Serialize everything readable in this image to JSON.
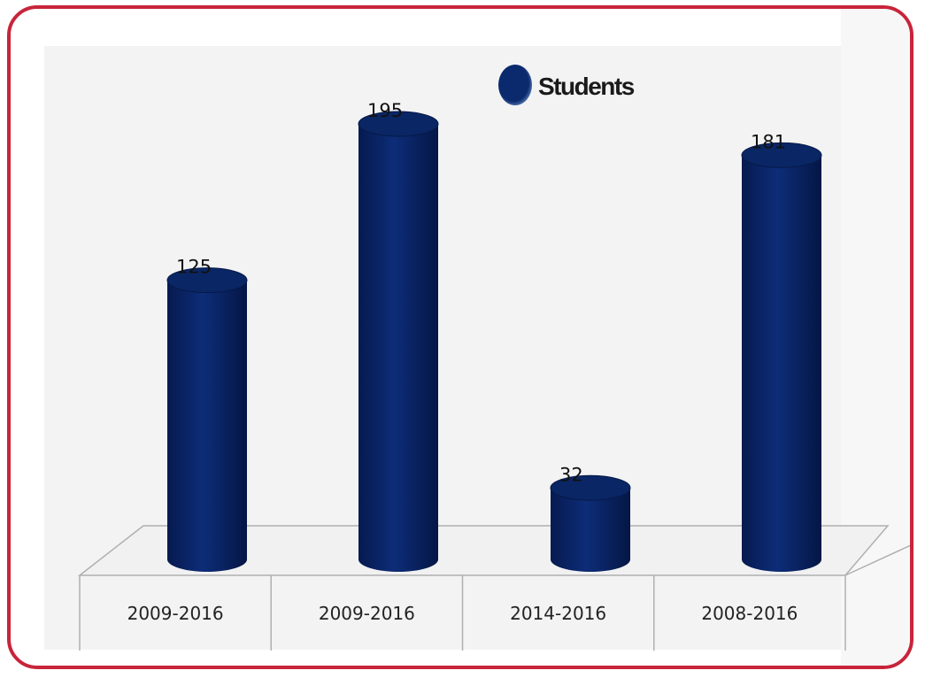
{
  "chart_data": {
    "type": "bar",
    "style": "3d-cylinder",
    "categories": [
      "2009-2016",
      "2009-2016",
      "2014-2016",
      "2008-2016"
    ],
    "series": [
      {
        "name": "Students",
        "values": [
          125,
          195,
          32,
          181
        ]
      }
    ],
    "data_labels": [
      "125",
      "195",
      "32",
      "181"
    ],
    "ylim": [
      0,
      210
    ],
    "grid": false,
    "legend": "top-center",
    "colors": {
      "bar": "#0b2a6e",
      "bar_dark": "#061a4a",
      "frame": "#c8243a",
      "plot_bg": "#f3f3f3"
    }
  }
}
